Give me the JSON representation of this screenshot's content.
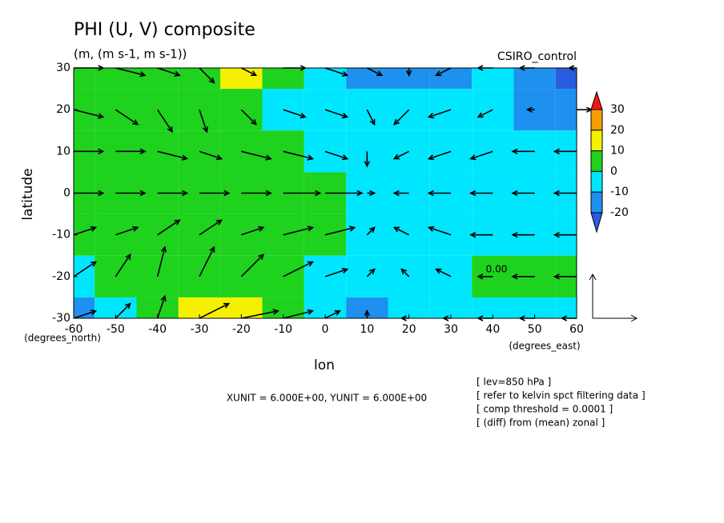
{
  "chart_data": {
    "type": "contour_vector",
    "title": "PHI (U, V) composite",
    "subtitle": "(m, (m s-1, m s-1))",
    "run_label": "CSIRO_control",
    "x_label": "lon",
    "y_label": "latitude",
    "x_unit_label": "(degrees_east)",
    "y_unit_label": "(degrees_north)",
    "xlim": [
      -60,
      60
    ],
    "ylim": [
      -30,
      30
    ],
    "xticks": [
      -60,
      -50,
      -40,
      -30,
      -20,
      -10,
      0,
      10,
      20,
      30,
      40,
      50,
      60
    ],
    "yticks": [
      -30,
      -20,
      -10,
      0,
      10,
      20,
      30
    ],
    "lon": [
      -60,
      -50,
      -40,
      -30,
      -20,
      -10,
      0,
      10,
      20,
      30,
      40,
      50,
      60
    ],
    "lat": [
      30,
      20,
      10,
      0,
      -10,
      -20,
      -30
    ],
    "phi": [
      [
        2,
        2,
        3,
        8,
        12,
        3,
        -5,
        -12,
        -13,
        -12,
        -9,
        -18,
        -22
      ],
      [
        3,
        3,
        3,
        3,
        3,
        -3,
        -6,
        -8,
        -8,
        -8,
        -9,
        -12,
        -15
      ],
      [
        3,
        3,
        3,
        3,
        3,
        2,
        -2,
        -6,
        -7,
        -7,
        -7,
        -8,
        -8
      ],
      [
        3,
        3,
        3,
        3,
        3,
        3,
        1,
        -5,
        -7,
        -8,
        -7,
        -7,
        -6
      ],
      [
        2,
        3,
        3,
        3,
        3,
        2,
        1,
        -5,
        -7,
        -7,
        -7,
        -6,
        -6
      ],
      [
        -5,
        3,
        6,
        8,
        6,
        3,
        -3,
        -5,
        -6,
        -6,
        2,
        3,
        3
      ],
      [
        -15,
        -8,
        5,
        12,
        15,
        5,
        -2,
        -12,
        -10,
        -6,
        -5,
        -5,
        -5
      ]
    ],
    "u": [
      [
        4,
        4,
        3,
        2,
        2,
        3,
        3,
        2,
        0,
        -2,
        -2,
        -2,
        -1
      ],
      [
        4,
        3,
        2,
        1,
        2,
        3,
        3,
        1,
        -2,
        -3,
        -2,
        -1,
        2
      ],
      [
        4,
        4,
        4,
        3,
        4,
        4,
        3,
        0,
        -2,
        -3,
        -3,
        -3,
        -3
      ],
      [
        4,
        4,
        4,
        4,
        4,
        5,
        5,
        1,
        -2,
        -3,
        -3,
        -3,
        -3
      ],
      [
        3,
        3,
        3,
        3,
        3,
        4,
        4,
        1,
        -2,
        -3,
        -3,
        -3,
        -3
      ],
      [
        3,
        2,
        1,
        2,
        3,
        4,
        3,
        1,
        -1,
        -2,
        -2,
        -3,
        -3
      ],
      [
        3,
        2,
        1,
        4,
        5,
        4,
        2,
        0,
        -1,
        -1,
        -2,
        -2,
        -2
      ]
    ],
    "v": [
      [
        0,
        -1,
        -1,
        -2,
        -1,
        0,
        -1,
        -1,
        -1,
        -1,
        0,
        0,
        0
      ],
      [
        -1,
        -2,
        -3,
        -3,
        -2,
        -1,
        -1,
        -2,
        -2,
        -1,
        -1,
        0,
        0
      ],
      [
        0,
        0,
        -1,
        -1,
        -1,
        -1,
        -1,
        -2,
        -1,
        -1,
        -1,
        0,
        0
      ],
      [
        0,
        0,
        0,
        0,
        0,
        0,
        0,
        0,
        0,
        0,
        0,
        0,
        0
      ],
      [
        1,
        1,
        2,
        2,
        1,
        1,
        1,
        1,
        1,
        1,
        0,
        0,
        0
      ],
      [
        2,
        3,
        4,
        4,
        3,
        2,
        1,
        1,
        1,
        1,
        0,
        0,
        0
      ],
      [
        1,
        2,
        3,
        2,
        1,
        1,
        1,
        1,
        0,
        0,
        0,
        0,
        0
      ]
    ],
    "levels": [
      -20,
      -10,
      0,
      10,
      20,
      30
    ],
    "colors": [
      "#2a5ce0",
      "#1e90f0",
      "#00e6ff",
      "#1ed21e",
      "#f5f000",
      "#f5a000",
      "#f01818"
    ],
    "contour_label": "0.00",
    "vector_scale": {
      "xunit": 6,
      "yunit": 6
    },
    "unit_note": "XUNIT = 6.000E+00, YUNIT = 6.000E+00",
    "notes": [
      "[ lev=850 hPa ]",
      "[ refer to kelvin spct filtering data ]",
      "[ comp threshold = 0.0001 ]",
      "[ (diff) from (mean) zonal ]"
    ]
  }
}
